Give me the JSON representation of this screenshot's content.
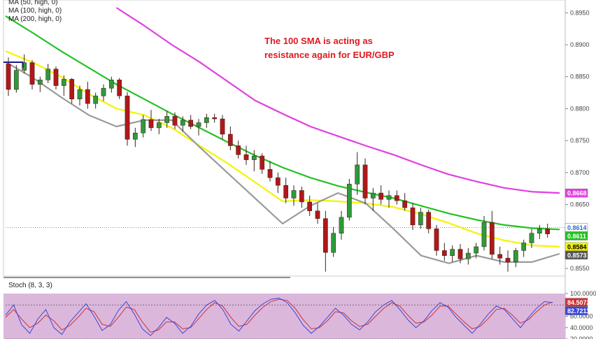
{
  "legend": {
    "ma50": "MA (50, high, 0)",
    "ma100": "MA (100, high, 0)",
    "ma200": "MA (200, high, 0)"
  },
  "annotation": {
    "line1": "The 100 SMA is acting as",
    "line2": "resistance again for EUR/GBP"
  },
  "stoch_label": "Stoch (8, 3, 3)",
  "price_ticks": [
    "0.8950",
    "0.8900",
    "0.8850",
    "0.8800",
    "0.8750",
    "0.8700",
    "0.8650",
    "0.8550"
  ],
  "stoch_ticks": [
    "100.0000",
    "60.0000",
    "40.0000",
    "20.0000"
  ],
  "badges": [
    {
      "text": "0.8668",
      "value": 0.8668,
      "bg": "#e040e0",
      "fg": "#ffffff"
    },
    {
      "text": "0.8614",
      "value": 0.8614,
      "bg": "#ffffff",
      "fg": "#2b6cc4"
    },
    {
      "text": "0.8611",
      "value": 0.8611,
      "bg": "#22c322",
      "fg": "#ffffff"
    },
    {
      "text": "0.8584",
      "value": 0.8584,
      "bg": "#f4f400",
      "fg": "#000000"
    },
    {
      "text": "0.8573",
      "value": 0.8573,
      "bg": "#555555",
      "fg": "#ffffff"
    }
  ],
  "stoch_badges": [
    {
      "text": "84.5072",
      "value": 84.5072,
      "bg": "#d03030",
      "fg": "#ffffff"
    },
    {
      "text": "82.7211",
      "value": 82.7211,
      "bg": "#3848d8",
      "fg": "#ffffff"
    }
  ],
  "chart_data": {
    "type": "candlestick",
    "symbol": "EUR/GBP",
    "ylim": [
      0.8538,
      0.897
    ],
    "stoch_ylim": [
      20,
      100
    ],
    "last_price": 0.8614,
    "colors": {
      "ma50": "#9a9a9a",
      "ma100": "#f4f400",
      "ma200": "#22c322",
      "ma_extra": "#e040e0",
      "stoch_k": "#3848d8",
      "stoch_d": "#d03030",
      "stoch_bg": "#dcb7dc",
      "annotation": "#e0191f"
    },
    "series": [
      {
        "name": "MA (200, high, 0)",
        "color": "#22c322",
        "values": [
          0.8945,
          0.8918,
          0.889,
          0.8864,
          0.8838,
          0.8815,
          0.8792,
          0.877,
          0.8748,
          0.8727,
          0.8708,
          0.8692,
          0.8679,
          0.8669,
          0.866,
          0.8648,
          0.8636,
          0.8626,
          0.8618,
          0.8613,
          0.8611
        ]
      },
      {
        "name": "MA (100, high, 0)",
        "color": "#f4f400",
        "values": [
          0.889,
          0.8872,
          0.885,
          0.8823,
          0.88,
          0.879,
          0.877,
          0.8742,
          0.8715,
          0.8685,
          0.8655,
          0.8657,
          0.8655,
          0.8652,
          0.8646,
          0.8635,
          0.8621,
          0.8605,
          0.8594,
          0.8586,
          0.8584
        ]
      },
      {
        "name": "MA (50, high, 0)",
        "color": "#9a9a9a",
        "values": [
          0.8873,
          0.8848,
          0.8818,
          0.879,
          0.8772,
          0.8782,
          0.8782,
          0.874,
          0.87,
          0.866,
          0.862,
          0.8648,
          0.8668,
          0.8652,
          0.8612,
          0.857,
          0.8558,
          0.857,
          0.856,
          0.856,
          0.8573
        ]
      },
      {
        "name": "",
        "color": "#e040e0",
        "values": [
          null,
          null,
          null,
          null,
          0.8958,
          0.893,
          0.89,
          0.8873,
          0.8843,
          0.8813,
          0.8792,
          0.8772,
          0.8757,
          0.8742,
          0.8728,
          0.8712,
          0.8697,
          0.8686,
          0.8676,
          0.867,
          0.8668
        ]
      }
    ],
    "ohlc": [
      [
        0.887,
        0.888,
        0.882,
        0.883
      ],
      [
        0.883,
        0.8868,
        0.8825,
        0.886
      ],
      [
        0.886,
        0.8885,
        0.8855,
        0.8872
      ],
      [
        0.8872,
        0.8876,
        0.883,
        0.8838
      ],
      [
        0.8838,
        0.885,
        0.8826,
        0.8845
      ],
      [
        0.8845,
        0.887,
        0.884,
        0.8862
      ],
      [
        0.8862,
        0.8866,
        0.883,
        0.8836
      ],
      [
        0.8836,
        0.8852,
        0.882,
        0.8846
      ],
      [
        0.8846,
        0.8848,
        0.8808,
        0.8815
      ],
      [
        0.8815,
        0.8836,
        0.8805,
        0.883
      ],
      [
        0.883,
        0.8842,
        0.88,
        0.8808
      ],
      [
        0.8808,
        0.8825,
        0.88,
        0.882
      ],
      [
        0.882,
        0.8838,
        0.8812,
        0.8832
      ],
      [
        0.8832,
        0.885,
        0.8825,
        0.8845
      ],
      [
        0.8845,
        0.8848,
        0.8815,
        0.882
      ],
      [
        0.882,
        0.8826,
        0.8742,
        0.8752
      ],
      [
        0.8752,
        0.877,
        0.874,
        0.8762
      ],
      [
        0.8762,
        0.879,
        0.8755,
        0.8783
      ],
      [
        0.8783,
        0.8798,
        0.8765,
        0.877
      ],
      [
        0.877,
        0.8784,
        0.876,
        0.8778
      ],
      [
        0.8778,
        0.8796,
        0.877,
        0.8788
      ],
      [
        0.8788,
        0.8794,
        0.8768,
        0.8774
      ],
      [
        0.8774,
        0.8788,
        0.8764,
        0.8782
      ],
      [
        0.8782,
        0.879,
        0.8768,
        0.8772
      ],
      [
        0.8772,
        0.8784,
        0.8758,
        0.8778
      ],
      [
        0.8778,
        0.8792,
        0.877,
        0.8786
      ],
      [
        0.8786,
        0.8792,
        0.8778,
        0.8784
      ],
      [
        0.8784,
        0.879,
        0.8752,
        0.876
      ],
      [
        0.876,
        0.8772,
        0.8735,
        0.8742
      ],
      [
        0.8742,
        0.875,
        0.8722,
        0.8728
      ],
      [
        0.8728,
        0.8742,
        0.8712,
        0.872
      ],
      [
        0.872,
        0.8735,
        0.8702,
        0.8726
      ],
      [
        0.8726,
        0.873,
        0.8698,
        0.8705
      ],
      [
        0.8705,
        0.8718,
        0.8686,
        0.8692
      ],
      [
        0.8692,
        0.87,
        0.8668,
        0.868
      ],
      [
        0.868,
        0.8692,
        0.8652,
        0.866
      ],
      [
        0.866,
        0.868,
        0.8648,
        0.8672
      ],
      [
        0.8672,
        0.8678,
        0.8645,
        0.8654
      ],
      [
        0.8654,
        0.8664,
        0.8632,
        0.864
      ],
      [
        0.864,
        0.8652,
        0.862,
        0.8628
      ],
      [
        0.8628,
        0.864,
        0.8545,
        0.8575
      ],
      [
        0.8575,
        0.8615,
        0.8568,
        0.8605
      ],
      [
        0.8605,
        0.864,
        0.8595,
        0.863
      ],
      [
        0.863,
        0.869,
        0.8625,
        0.8682
      ],
      [
        0.8682,
        0.8732,
        0.8665,
        0.8712
      ],
      [
        0.8712,
        0.8722,
        0.865,
        0.866
      ],
      [
        0.866,
        0.8676,
        0.864,
        0.8668
      ],
      [
        0.8668,
        0.868,
        0.865,
        0.8658
      ],
      [
        0.8658,
        0.8672,
        0.8645,
        0.8664
      ],
      [
        0.8664,
        0.8672,
        0.865,
        0.8656
      ],
      [
        0.8656,
        0.8668,
        0.864,
        0.8645
      ],
      [
        0.8645,
        0.8652,
        0.861,
        0.8618
      ],
      [
        0.8618,
        0.8645,
        0.8612,
        0.8638
      ],
      [
        0.8638,
        0.8642,
        0.8605,
        0.8612
      ],
      [
        0.8612,
        0.8618,
        0.857,
        0.8578
      ],
      [
        0.8578,
        0.859,
        0.8562,
        0.857
      ],
      [
        0.857,
        0.8586,
        0.856,
        0.858
      ],
      [
        0.858,
        0.8588,
        0.8558,
        0.8565
      ],
      [
        0.8565,
        0.8582,
        0.8556,
        0.8574
      ],
      [
        0.8574,
        0.859,
        0.8566,
        0.8584
      ],
      [
        0.8584,
        0.8632,
        0.8578,
        0.8622
      ],
      [
        0.8622,
        0.864,
        0.8565,
        0.8572
      ],
      [
        0.8572,
        0.8584,
        0.8556,
        0.8566
      ],
      [
        0.8566,
        0.8578,
        0.8545,
        0.856
      ],
      [
        0.856,
        0.8582,
        0.8552,
        0.8578
      ],
      [
        0.8578,
        0.8595,
        0.8568,
        0.859
      ],
      [
        0.859,
        0.8612,
        0.8582,
        0.8605
      ],
      [
        0.8605,
        0.8618,
        0.8596,
        0.8612
      ],
      [
        0.8612,
        0.862,
        0.8598,
        0.8604
      ]
    ],
    "stoch_k": [
      62,
      80,
      45,
      30,
      55,
      72,
      40,
      28,
      50,
      66,
      82,
      60,
      35,
      45,
      70,
      86,
      64,
      38,
      26,
      40,
      58,
      48,
      30,
      42,
      64,
      80,
      88,
      72,
      46,
      34,
      52,
      70,
      82,
      90,
      92,
      84,
      66,
      44,
      30,
      42,
      58,
      74,
      62,
      46,
      36,
      50,
      68,
      80,
      88,
      72,
      54,
      40,
      52,
      70,
      84,
      76,
      58,
      44,
      30,
      46,
      64,
      78,
      72,
      56,
      40,
      58,
      74,
      86,
      84
    ],
    "stoch_d": [
      58,
      72,
      55,
      40,
      48,
      62,
      52,
      36,
      44,
      58,
      74,
      68,
      46,
      42,
      58,
      76,
      72,
      50,
      32,
      36,
      50,
      50,
      38,
      40,
      56,
      72,
      84,
      78,
      58,
      42,
      46,
      62,
      76,
      86,
      90,
      88,
      74,
      54,
      38,
      40,
      52,
      68,
      66,
      52,
      42,
      46,
      60,
      74,
      84,
      78,
      62,
      48,
      50,
      62,
      78,
      78,
      64,
      50,
      38,
      42,
      56,
      72,
      74,
      62,
      48,
      54,
      68,
      80,
      85
    ],
    "annotations": [
      "The 100 SMA is acting as resistance again for EUR/GBP"
    ]
  }
}
